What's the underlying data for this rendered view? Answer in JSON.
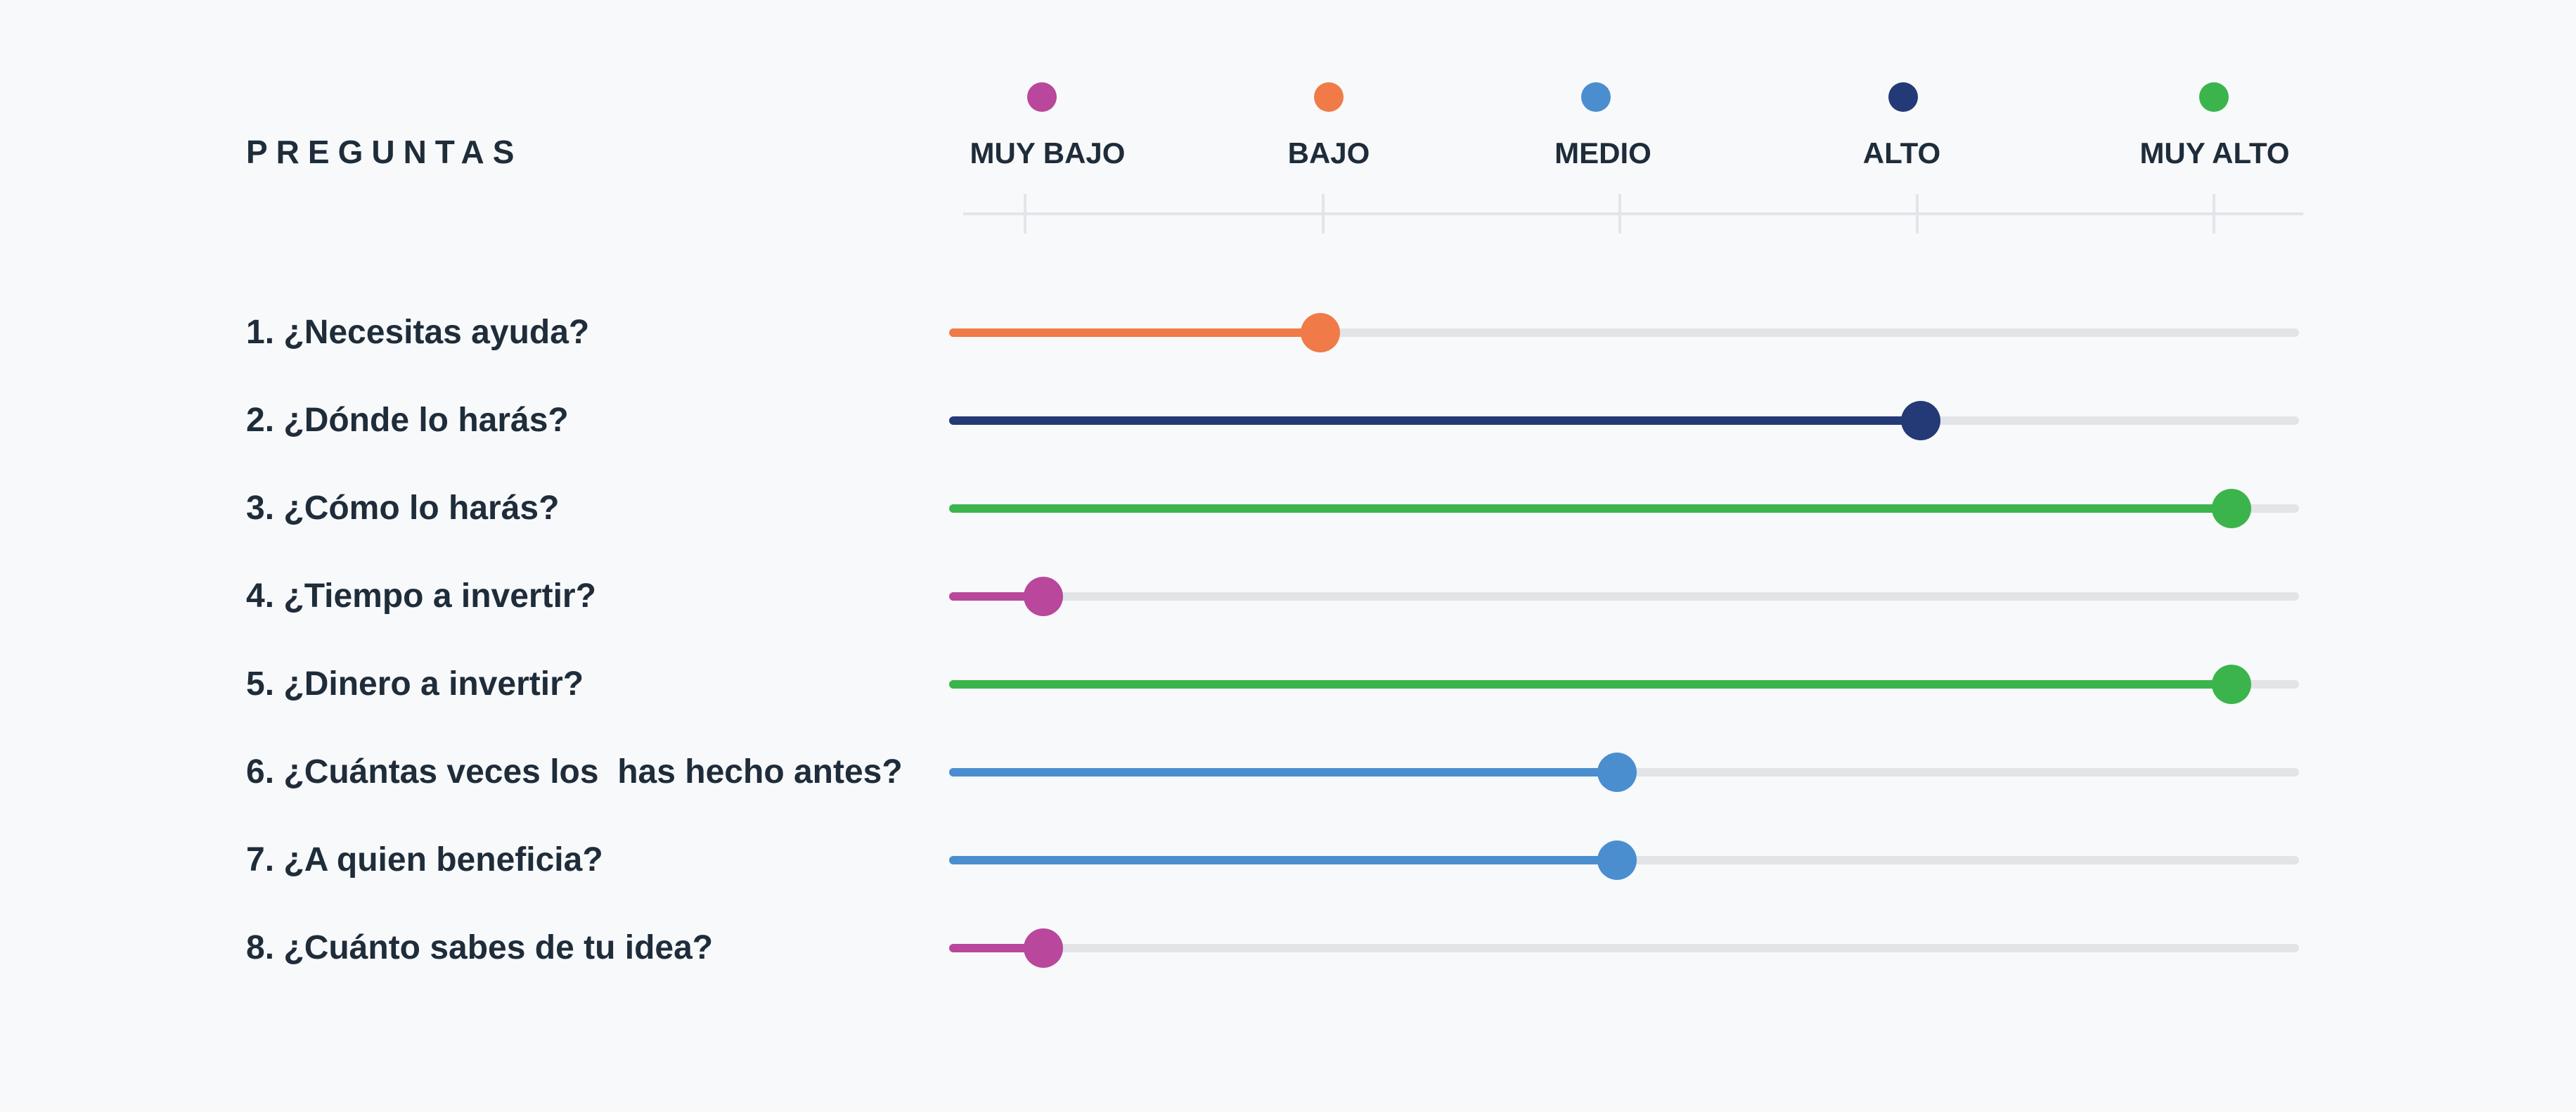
{
  "header": {
    "title": "PREGUNTAS"
  },
  "levels": [
    {
      "id": "muy-bajo",
      "label": "MUY BAJO",
      "color": "#b9479b"
    },
    {
      "id": "bajo",
      "label": "BAJO",
      "color": "#f07a48"
    },
    {
      "id": "medio",
      "label": "MEDIO",
      "color": "#4a8ecf"
    },
    {
      "id": "alto",
      "label": "ALTO",
      "color": "#243a76"
    },
    {
      "id": "muy-alto",
      "label": "MUY ALTO",
      "color": "#3cb44c"
    }
  ],
  "questions": [
    {
      "label": "1. ¿Necesitas ayuda?",
      "value": 0.275,
      "level": 1
    },
    {
      "label": "2. ¿Dónde lo harás?",
      "value": 0.72,
      "level": 3
    },
    {
      "label": "3. ¿Cómo lo harás?",
      "value": 0.95,
      "level": 4
    },
    {
      "label": "4. ¿Tiempo a invertir?",
      "value": 0.07,
      "level": 0
    },
    {
      "label": "5. ¿Dinero a invertir?",
      "value": 0.95,
      "level": 4
    },
    {
      "label": "6. ¿Cuántas veces los  has hecho antes?",
      "value": 0.495,
      "level": 2
    },
    {
      "label": "7. ¿A quien beneficia?",
      "value": 0.495,
      "level": 2
    },
    {
      "label": "8. ¿Cuánto sabes de tu idea?",
      "value": 0.07,
      "level": 0
    }
  ]
}
